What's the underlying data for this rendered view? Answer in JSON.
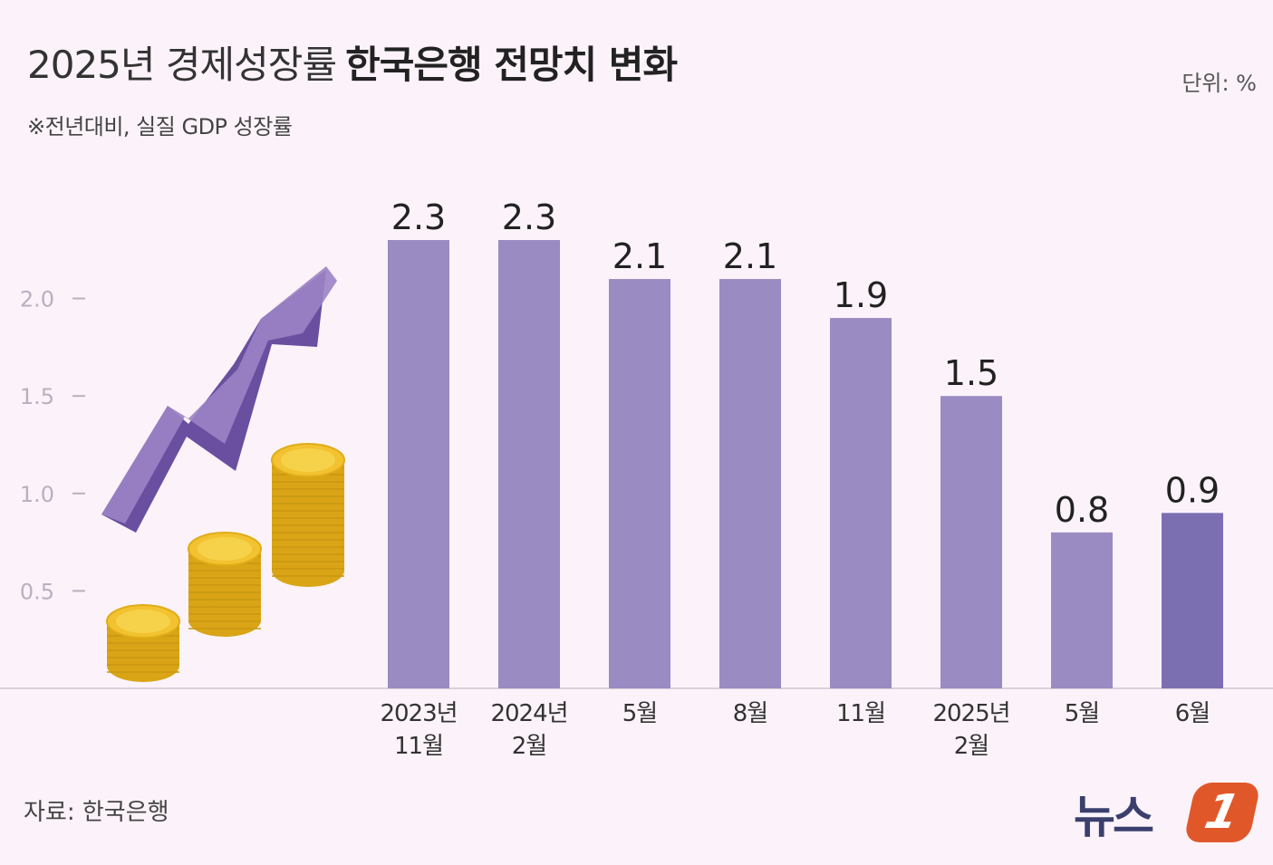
{
  "header": {
    "title_light": "2025년 경제성장률",
    "title_bold": "한국은행 전망치 변화",
    "unit": "단위: %",
    "subtitle": "※전년대비, 실질 GDP 성장률"
  },
  "footer": {
    "source": "자료: 한국은행",
    "logo_text": "뉴스",
    "logo_badge": "1"
  },
  "colors": {
    "bar": "#9a8bc2",
    "bar_highlight": "#7b6fb2",
    "axis_text": "#b8b0c0",
    "arrow_light": "#9c83c4",
    "arrow_dark": "#6a4ea0",
    "coin": "#f2c230",
    "coin_dark": "#d9a516"
  },
  "chart_data": {
    "type": "bar",
    "categories": [
      [
        "2023년",
        "11월"
      ],
      [
        "2024년",
        "2월"
      ],
      [
        "5월"
      ],
      [
        "8월"
      ],
      [
        "11월"
      ],
      [
        "2025년",
        "2월"
      ],
      [
        "5월"
      ],
      [
        "6월"
      ]
    ],
    "values": [
      2.3,
      2.3,
      2.1,
      2.1,
      1.9,
      1.5,
      0.8,
      0.9
    ],
    "value_labels": [
      "2.3",
      "2.3",
      "2.1",
      "2.1",
      "1.9",
      "1.5",
      "0.8",
      "0.9"
    ],
    "highlight_index": 7,
    "yticks": [
      "0.5",
      "1.0",
      "1.5",
      "2.0"
    ],
    "ytick_values": [
      0.5,
      1.0,
      1.5,
      2.0
    ],
    "ylim": [
      0,
      2.3
    ],
    "grid": false
  }
}
